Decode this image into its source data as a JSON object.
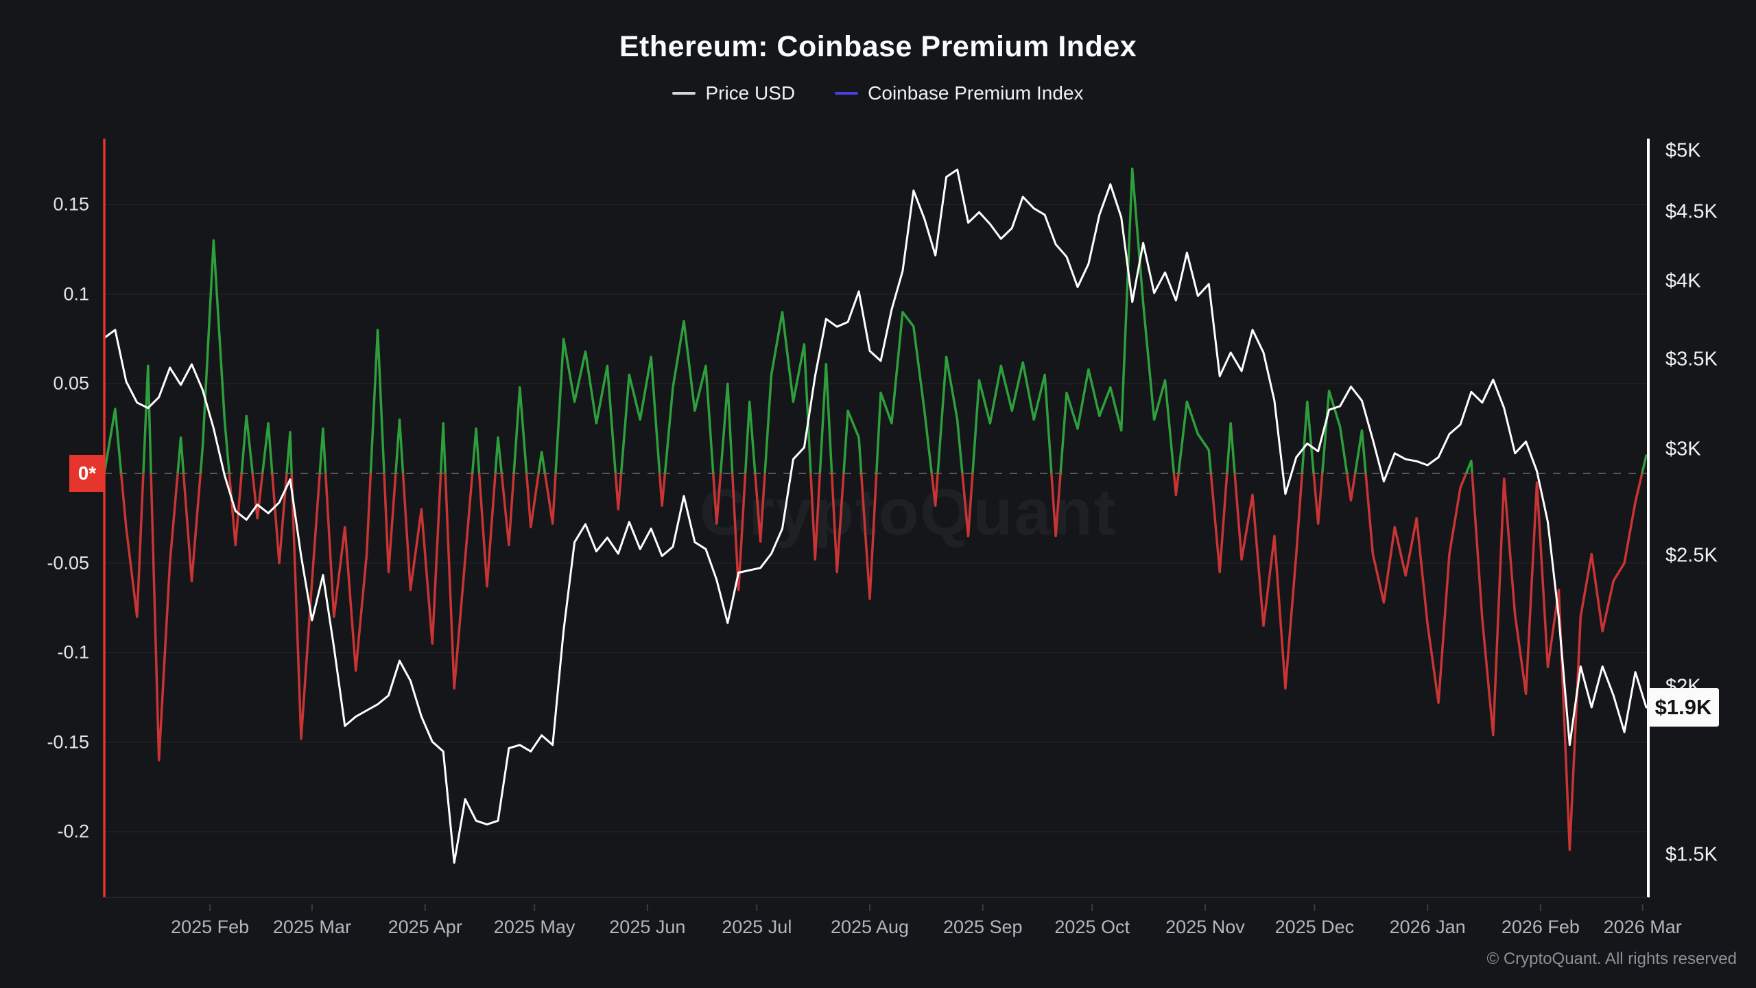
{
  "header": {
    "title": "Ethereum: Coinbase Premium Index"
  },
  "legend": [
    {
      "label": "Price USD",
      "color": "#d3d6db"
    },
    {
      "label": "Coinbase Premium Index",
      "color": "#4b3fe0"
    }
  ],
  "badges": {
    "zero": "0*",
    "price": "$1.9K"
  },
  "watermark": "CryptoQuant",
  "footer": "© CryptoQuant. All rights reserved",
  "colors": {
    "background": "#141619",
    "grid": "#222327",
    "zero_line": "#55575b",
    "left_axis_line": "#e5352c",
    "right_axis_line": "#ffffff",
    "bottom_axis_line": "#2a2c30",
    "tick_mark": "#3a3c41",
    "price_line": "#ffffff",
    "premium_positive": "#2f9e3c",
    "premium_negative": "#c93434",
    "zero_badge_bg": "#e5352c",
    "price_badge_bg": "#fbfbfc",
    "price_badge_text": "#121317"
  },
  "axes": {
    "left_ticks": [
      {
        "label": "0.15",
        "value": 0.15
      },
      {
        "label": "0.1",
        "value": 0.1
      },
      {
        "label": "0.05",
        "value": 0.05
      },
      {
        "label": "-0.05",
        "value": -0.05
      },
      {
        "label": "-0.1",
        "value": -0.1
      },
      {
        "label": "-0.15",
        "value": -0.15
      },
      {
        "label": "-0.2",
        "value": -0.2
      }
    ],
    "right_ticks": [
      {
        "label": "$5K",
        "value": 5000
      },
      {
        "label": "$4.5K",
        "value": 4500
      },
      {
        "label": "$4K",
        "value": 4000
      },
      {
        "label": "$3.5K",
        "value": 3500
      },
      {
        "label": "$3K",
        "value": 3000
      },
      {
        "label": "$2.5K",
        "value": 2500
      },
      {
        "label": "$2K",
        "value": 2000
      },
      {
        "label": "$1.5K",
        "value": 1500
      }
    ],
    "x_ticks": [
      {
        "label": "2025 Feb",
        "t": 0.06856
      },
      {
        "label": "2025 Mar",
        "t": 0.13475
      },
      {
        "label": "2025 Apr",
        "t": 0.20804
      },
      {
        "label": "2025 May",
        "t": 0.27896
      },
      {
        "label": "2025 Jun",
        "t": 0.35225
      },
      {
        "label": "2025 Jul",
        "t": 0.42317
      },
      {
        "label": "2025 Aug",
        "t": 0.49645
      },
      {
        "label": "2025 Sep",
        "t": 0.56974
      },
      {
        "label": "2025 Oct",
        "t": 0.64066
      },
      {
        "label": "2025 Nov",
        "t": 0.71395
      },
      {
        "label": "2025 Dec",
        "t": 0.78487
      },
      {
        "label": "2026 Jan",
        "t": 0.85816
      },
      {
        "label": "2026 Feb",
        "t": 0.93144
      },
      {
        "label": "2026 Mar",
        "t": 0.99764
      }
    ]
  },
  "chart_data": {
    "type": "line",
    "title": "Ethereum: Coinbase Premium Index",
    "x_start": "2025-01-03",
    "x_end": "2026-03-02",
    "sample_interval_days": 3,
    "grid": "horizontal-faint",
    "legend_position": "top-center",
    "left_axis": {
      "name": "Coinbase Premium Index",
      "scale": "linear",
      "ticks": [
        0.15,
        0.1,
        0.05,
        0,
        -0.05,
        -0.1,
        -0.15,
        -0.2
      ],
      "range": [
        -0.236,
        0.187
      ]
    },
    "right_axis": {
      "name": "Price USD",
      "scale": "log",
      "ticks": [
        5000,
        4500,
        4000,
        3500,
        3000,
        2500,
        2000,
        1500
      ],
      "range": [
        1390,
        5100
      ]
    },
    "zero_reference_line": 0,
    "last_price_label": "$1.9K",
    "series": [
      {
        "name": "Price USD",
        "axis": "right",
        "color": "#ffffff",
        "values": [
          3630,
          3680,
          3370,
          3250,
          3220,
          3280,
          3450,
          3350,
          3470,
          3320,
          3110,
          2870,
          2700,
          2660,
          2730,
          2690,
          2740,
          2850,
          2500,
          2240,
          2420,
          2140,
          1870,
          1900,
          1920,
          1940,
          1970,
          2090,
          2020,
          1900,
          1820,
          1790,
          1480,
          1650,
          1590,
          1580,
          1590,
          1800,
          1810,
          1790,
          1840,
          1810,
          2200,
          2560,
          2640,
          2520,
          2580,
          2510,
          2650,
          2530,
          2620,
          2500,
          2540,
          2770,
          2560,
          2530,
          2400,
          2230,
          2430,
          2440,
          2450,
          2510,
          2620,
          2950,
          3010,
          3400,
          3750,
          3700,
          3730,
          3930,
          3550,
          3490,
          3810,
          4070,
          4670,
          4450,
          4180,
          4780,
          4840,
          4420,
          4500,
          4410,
          4300,
          4380,
          4620,
          4530,
          4480,
          4260,
          4170,
          3960,
          4120,
          4480,
          4720,
          4460,
          3860,
          4270,
          3920,
          4060,
          3870,
          4200,
          3900,
          3980,
          3400,
          3540,
          3430,
          3680,
          3540,
          3260,
          2780,
          2960,
          3030,
          2990,
          3210,
          3230,
          3340,
          3260,
          3050,
          2840,
          2980,
          2950,
          2940,
          2920,
          2960,
          3080,
          3130,
          3310,
          3250,
          3380,
          3220,
          2980,
          3040,
          2890,
          2650,
          2250,
          1810,
          2070,
          1930,
          2070,
          1970,
          1850,
          2050,
          1930
        ]
      },
      {
        "name": "Coinbase Premium Index",
        "axis": "left",
        "color_positive": "#2f9e3c",
        "color_negative": "#c93434",
        "values": [
          0.0,
          0.036,
          -0.03,
          -0.08,
          0.06,
          -0.16,
          -0.05,
          0.02,
          -0.06,
          0.015,
          0.13,
          0.03,
          -0.04,
          0.032,
          -0.025,
          0.028,
          -0.05,
          0.023,
          -0.148,
          -0.06,
          0.025,
          -0.08,
          -0.03,
          -0.11,
          -0.045,
          0.08,
          -0.055,
          0.03,
          -0.065,
          -0.02,
          -0.095,
          0.028,
          -0.12,
          -0.048,
          0.025,
          -0.063,
          0.02,
          -0.04,
          0.048,
          -0.03,
          0.012,
          -0.028,
          0.075,
          0.04,
          0.068,
          0.028,
          0.06,
          -0.02,
          0.055,
          0.03,
          0.065,
          -0.018,
          0.048,
          0.085,
          0.035,
          0.06,
          -0.028,
          0.05,
          -0.065,
          0.04,
          -0.038,
          0.055,
          0.09,
          0.04,
          0.072,
          -0.048,
          0.061,
          -0.055,
          0.035,
          0.02,
          -0.07,
          0.045,
          0.028,
          0.09,
          0.082,
          0.035,
          -0.018,
          0.065,
          0.03,
          -0.035,
          0.052,
          0.028,
          0.06,
          0.035,
          0.062,
          0.03,
          0.055,
          -0.035,
          0.045,
          0.025,
          0.058,
          0.032,
          0.048,
          0.024,
          0.17,
          0.095,
          0.03,
          0.052,
          -0.012,
          0.04,
          0.022,
          0.013,
          -0.055,
          0.028,
          -0.048,
          -0.012,
          -0.085,
          -0.035,
          -0.12,
          -0.045,
          0.04,
          -0.028,
          0.046,
          0.026,
          -0.015,
          0.024,
          -0.045,
          -0.072,
          -0.03,
          -0.057,
          -0.025,
          -0.084,
          -0.128,
          -0.045,
          -0.008,
          0.007,
          -0.081,
          -0.146,
          -0.003,
          -0.079,
          -0.123,
          -0.005,
          -0.108,
          -0.065,
          -0.21,
          -0.08,
          -0.045,
          -0.088,
          -0.06,
          -0.05,
          -0.016,
          0.01
        ]
      }
    ]
  }
}
